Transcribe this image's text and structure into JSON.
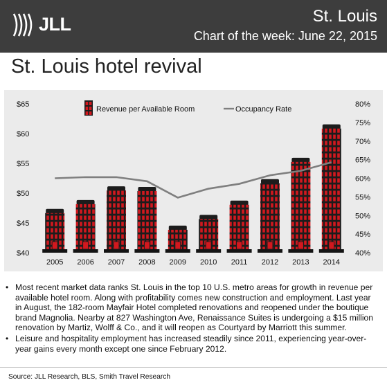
{
  "header": {
    "logo_text": "JLL",
    "city": "St. Louis",
    "chart_of_week": "Chart of the week: June 22, 2015"
  },
  "page_title": "St. Louis hotel revival",
  "chart_data": {
    "type": "bar",
    "categories": [
      "2005",
      "2006",
      "2007",
      "2008",
      "2009",
      "2010",
      "2011",
      "2012",
      "2013",
      "2014"
    ],
    "series": [
      {
        "name": "Revenue per Available Room",
        "type": "bar",
        "axis": "left",
        "color": "#c0141a",
        "values": [
          47.0,
          48.5,
          50.8,
          50.7,
          44.2,
          46.0,
          48.4,
          52.0,
          55.6,
          61.2
        ]
      },
      {
        "name": "Occupancy Rate",
        "type": "line",
        "axis": "right",
        "color": "#7f7f7f",
        "values": [
          60.0,
          60.3,
          60.3,
          59.2,
          54.8,
          57.2,
          58.5,
          60.8,
          62.0,
          64.3
        ]
      }
    ],
    "y_left": {
      "ticks": [
        "$40",
        "$45",
        "$50",
        "$55",
        "$60",
        "$65"
      ],
      "ylim": [
        40,
        65
      ]
    },
    "y_right": {
      "ticks": [
        "40%",
        "45%",
        "50%",
        "55%",
        "60%",
        "65%",
        "70%",
        "75%",
        "80%"
      ],
      "ylim": [
        40,
        80
      ]
    },
    "legend_placement": "top",
    "grid": false
  },
  "bullets": [
    "Most recent market data ranks St. Louis in the top 10 U.S. metro areas for growth in revenue per available hotel room. Along with profitability comes new construction and employment. Last year in August, the 182-room Mayfair Hotel completed renovations and reopened under the boutique brand Magnolia. Nearby at 827 Washington Ave, Renaissance Suites is undergoing a $15 million renovation by Martiz, Wolff & Co., and it will reopen as Courtyard by Marriott this summer.",
    "Leisure and hospitality employment has increased steadily since 2011, experiencing year-over-year gains every month except one since February 2012."
  ],
  "source": "Source: JLL Research, BLS, Smith Travel Research"
}
